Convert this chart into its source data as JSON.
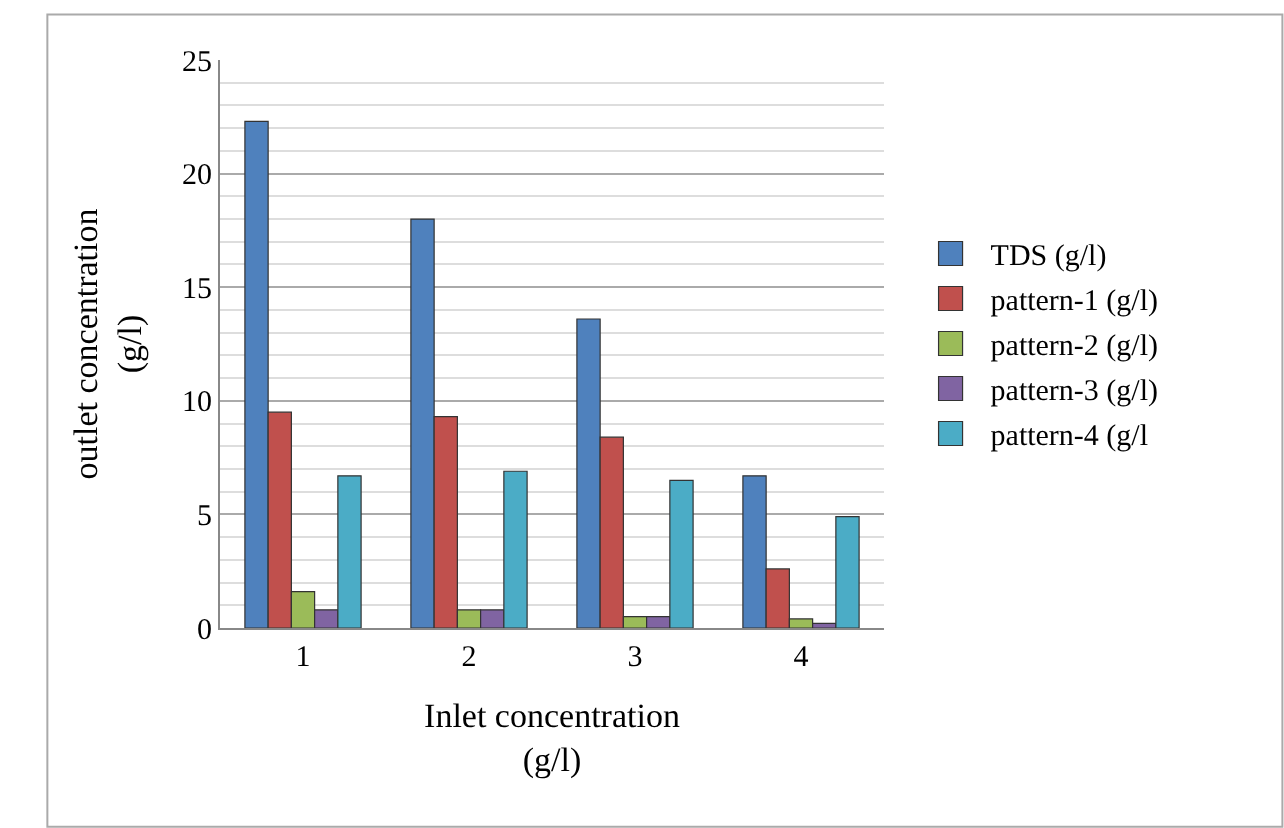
{
  "chart_data": {
    "type": "bar",
    "xlabel": "Inlet concentration\n(g/l)",
    "ylabel": "outlet concentration\n(g/l)",
    "categories": [
      "1",
      "2",
      "3",
      "4"
    ],
    "series": [
      {
        "name": "TDS (g/l)",
        "color": "#4f81bd",
        "values": [
          22.3,
          18.0,
          13.6,
          6.7
        ]
      },
      {
        "name": "pattern-1 (g/l)",
        "color": "#c0504d",
        "values": [
          9.5,
          9.3,
          8.4,
          2.6
        ]
      },
      {
        "name": "pattern-2 (g/l)",
        "color": "#9bbb59",
        "values": [
          1.6,
          0.8,
          0.5,
          0.4
        ]
      },
      {
        "name": "pattern-3 (g/l)",
        "color": "#8064a2",
        "values": [
          0.8,
          0.8,
          0.5,
          0.2
        ]
      },
      {
        "name": "pattern-4 (g/l",
        "color": "#4bacc6",
        "values": [
          6.7,
          6.9,
          6.5,
          4.9
        ]
      }
    ],
    "ylim": [
      0,
      25
    ],
    "yticks": [
      0,
      5,
      10,
      15,
      20,
      25
    ],
    "grid": "y",
    "legend": "right"
  }
}
